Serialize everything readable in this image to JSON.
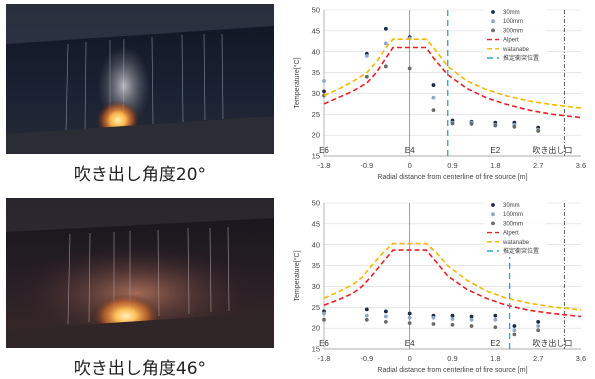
{
  "photos": [
    {
      "caption": "吹き出し角度20°"
    },
    {
      "caption": "吹き出し角度46°"
    }
  ],
  "colors": {
    "s30": "#1b2a47",
    "s100": "#8ea6c7",
    "s300": "#6b6b6b",
    "alpert": "#e8202a",
    "watanabe": "#f5b800",
    "estimate": "#2aa0d8"
  },
  "chart_data": [
    {
      "type": "scatter",
      "xlabel": "Radial distance from centerline of fire source [m]",
      "ylabel": "Temperature[°C]",
      "xlim": [
        -1.8,
        3.6
      ],
      "ylim": [
        15,
        50
      ],
      "xticks": [
        "-1.8",
        "-0.9",
        "0",
        "0.9",
        "1.8",
        "2.7",
        "3.6"
      ],
      "yticks": [
        "15",
        "20",
        "25",
        "30",
        "35",
        "40",
        "45",
        "50"
      ],
      "annotations": [
        {
          "text": "E6",
          "x": -1.8
        },
        {
          "text": "E4",
          "x": 0
        },
        {
          "text": "E2",
          "x": 1.8
        },
        {
          "text": "吹き出し口",
          "x": 3.0
        }
      ],
      "estimate_line_x": 0.8,
      "outlet_line_x": 3.25,
      "series": [
        {
          "name": "30mm",
          "marker": "point",
          "color_key": "s30",
          "x": [
            -1.8,
            -0.9,
            -0.5,
            0,
            0.5,
            0.9,
            1.3,
            1.8,
            2.2,
            2.7
          ],
          "y": [
            30.5,
            39.5,
            45.5,
            43.5,
            32.0,
            23.5,
            23.2,
            23.0,
            23.0,
            21.8
          ]
        },
        {
          "name": "100mm",
          "marker": "point",
          "color_key": "s100",
          "x": [
            -1.8,
            -0.9,
            -0.5,
            0,
            0.5,
            0.9,
            1.3,
            1.8,
            2.2,
            2.7
          ],
          "y": [
            33.0,
            39.0,
            42.0,
            43.2,
            29.0,
            23.0,
            23.0,
            22.5,
            22.5,
            21.3
          ]
        },
        {
          "name": "300mm",
          "marker": "point",
          "color_key": "s300",
          "x": [
            -1.8,
            -0.9,
            -0.5,
            0,
            0.5,
            0.9,
            1.3,
            1.8,
            2.2,
            2.7
          ],
          "y": [
            29.5,
            34.0,
            36.5,
            36.0,
            26.0,
            22.8,
            22.7,
            22.3,
            22.0,
            21.0
          ]
        },
        {
          "name": "Alpert",
          "marker": "line",
          "color_key": "alpert",
          "dash": "dash",
          "x": [
            -1.8,
            -1.5,
            -1.2,
            -0.9,
            -0.7,
            -0.5,
            -0.35,
            0.35,
            0.5,
            0.8,
            1.2,
            1.6,
            2.0,
            2.5,
            3.0,
            3.6
          ],
          "y": [
            27.5,
            29.0,
            30.5,
            32.5,
            35.0,
            38.5,
            41.0,
            41.0,
            38.5,
            34.5,
            31.2,
            29.0,
            27.5,
            26.0,
            25.0,
            24.2
          ]
        },
        {
          "name": "watanabe",
          "marker": "line",
          "color_key": "watanabe",
          "dash": "dash",
          "x": [
            -1.8,
            -1.5,
            -1.2,
            -0.9,
            -0.7,
            -0.5,
            -0.35,
            0.35,
            0.5,
            0.8,
            1.2,
            1.6,
            2.0,
            2.5,
            3.0,
            3.6
          ],
          "y": [
            29.5,
            31.0,
            32.8,
            35.0,
            37.5,
            41.0,
            43.0,
            43.0,
            41.0,
            36.5,
            33.0,
            31.0,
            29.5,
            28.2,
            27.3,
            26.5
          ]
        },
        {
          "name": "推定衝突位置",
          "marker": "vline",
          "color_key": "estimate",
          "dash": "longdash"
        }
      ]
    },
    {
      "type": "scatter",
      "xlabel": "Radial distance from centerline of fire source [m]",
      "ylabel": "Temperature[°C]",
      "xlim": [
        -1.8,
        3.6
      ],
      "ylim": [
        15,
        50
      ],
      "xticks": [
        "-1.8",
        "-0.9",
        "0",
        "0.9",
        "1.8",
        "2.7",
        "3.6"
      ],
      "yticks": [
        "15",
        "20",
        "25",
        "30",
        "35",
        "40",
        "45",
        "50"
      ],
      "annotations": [
        {
          "text": "E6",
          "x": -1.8
        },
        {
          "text": "E4",
          "x": 0
        },
        {
          "text": "E2",
          "x": 1.8
        },
        {
          "text": "吹き出し口",
          "x": 3.0
        }
      ],
      "estimate_line_x": 2.1,
      "outlet_line_x": 3.25,
      "series": [
        {
          "name": "30mm",
          "marker": "point",
          "color_key": "s30",
          "x": [
            -1.8,
            -0.9,
            -0.5,
            0,
            0.5,
            0.9,
            1.3,
            1.8,
            2.2,
            2.7
          ],
          "y": [
            24.0,
            24.5,
            24.0,
            23.5,
            23.0,
            23.0,
            22.8,
            23.0,
            20.5,
            21.5
          ]
        },
        {
          "name": "100mm",
          "marker": "point",
          "color_key": "s100",
          "x": [
            -1.8,
            -0.9,
            -0.5,
            0,
            0.5,
            0.9,
            1.3,
            1.8,
            2.2,
            2.7
          ],
          "y": [
            23.5,
            23.0,
            22.8,
            22.5,
            22.5,
            22.2,
            22.0,
            22.0,
            19.5,
            20.5
          ]
        },
        {
          "name": "300mm",
          "marker": "point",
          "color_key": "s300",
          "x": [
            -1.8,
            -0.9,
            -0.5,
            0,
            0.5,
            0.9,
            1.3,
            1.8,
            2.2,
            2.7
          ],
          "y": [
            22.0,
            22.0,
            21.5,
            21.2,
            21.0,
            20.8,
            20.5,
            20.2,
            18.5,
            19.5
          ]
        },
        {
          "name": "Alpert",
          "marker": "line",
          "color_key": "alpert",
          "dash": "dash",
          "x": [
            -1.8,
            -1.5,
            -1.2,
            -1.0,
            -0.8,
            -0.55,
            -0.35,
            0.35,
            0.55,
            0.8,
            1.2,
            1.6,
            2.0,
            2.5,
            3.0,
            3.6
          ],
          "y": [
            25.5,
            26.8,
            28.3,
            30.0,
            32.5,
            36.0,
            38.7,
            38.7,
            36.0,
            32.5,
            29.3,
            27.2,
            25.6,
            24.3,
            23.5,
            22.8
          ]
        },
        {
          "name": "watanabe",
          "marker": "line",
          "color_key": "watanabe",
          "dash": "dash",
          "x": [
            -1.8,
            -1.5,
            -1.2,
            -1.0,
            -0.8,
            -0.55,
            -0.35,
            0.35,
            0.55,
            0.8,
            1.2,
            1.6,
            2.0,
            2.5,
            3.0,
            3.6
          ],
          "y": [
            27.2,
            28.7,
            30.4,
            32.2,
            35.0,
            38.2,
            40.3,
            40.3,
            38.2,
            35.0,
            31.5,
            29.0,
            27.3,
            26.0,
            25.1,
            24.4
          ]
        },
        {
          "name": "推定衝突位置",
          "marker": "vline",
          "color_key": "estimate",
          "dash": "longdash"
        }
      ]
    }
  ]
}
